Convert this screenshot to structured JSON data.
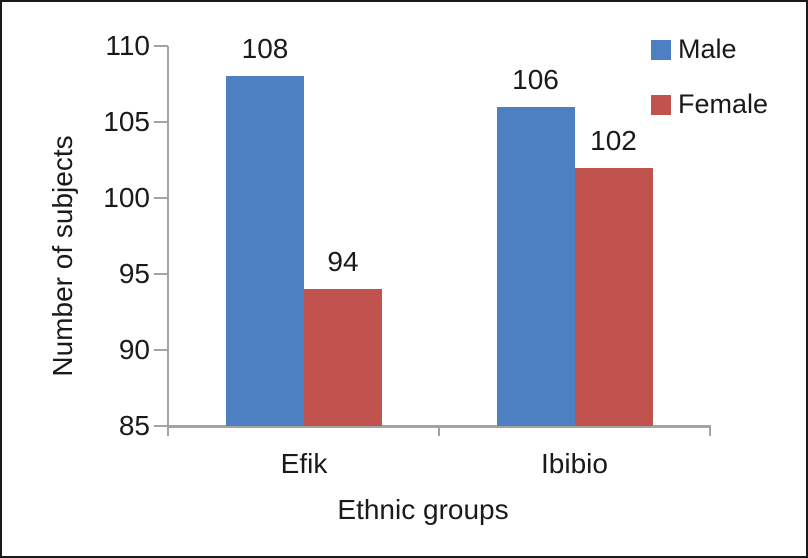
{
  "chart_data": {
    "type": "bar",
    "title": "",
    "categories": [
      "Efik",
      "Ibibio"
    ],
    "series": [
      {
        "name": "Male",
        "color": "#4c80c3",
        "values": [
          108,
          106
        ]
      },
      {
        "name": "Female",
        "color": "#c1534f",
        "values": [
          94,
          102
        ]
      }
    ],
    "xlabel": "Ethnic groups",
    "ylabel": "Number of subjects",
    "ylim": [
      85,
      110
    ],
    "yticks": [
      85,
      90,
      95,
      100,
      105,
      110
    ],
    "grid": false,
    "legend_position": "top-right",
    "value_labels_shown": true,
    "axis_color": "#a3a3a3",
    "text_color": "#1a1a1a"
  }
}
